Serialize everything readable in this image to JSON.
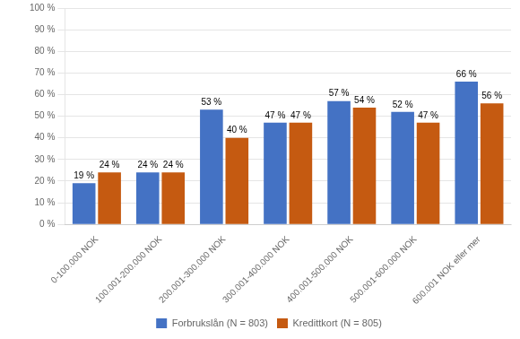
{
  "chart_data": {
    "type": "bar",
    "categories": [
      "0-100.000 NOK",
      "100.001-200.000 NOK",
      "200.001-300.000 NOK",
      "300.001-400.000 NOK",
      "400.001-500.000 NOK",
      "500.001-600.000 NOK",
      "600.001 NOK eller mer"
    ],
    "series": [
      {
        "name": "Forbrukslån (N = 803)",
        "color": "#4472C4",
        "values": [
          19,
          24,
          53,
          47,
          57,
          52,
          66
        ],
        "value_labels": [
          "19 %",
          "24 %",
          "53 %",
          "47 %",
          "57 %",
          "52 %",
          "66 %"
        ]
      },
      {
        "name": "Kredittkort (N = 805)",
        "color": "#C55A11",
        "values": [
          24,
          24,
          40,
          47,
          54,
          47,
          56
        ],
        "value_labels": [
          "24 %",
          "24 %",
          "40 %",
          "47 %",
          "54 %",
          "47 %",
          "56 %"
        ]
      }
    ],
    "ylim": [
      0,
      100
    ],
    "yticks": [
      {
        "value": 0,
        "label": "0 %"
      },
      {
        "value": 10,
        "label": "10 %"
      },
      {
        "value": 20,
        "label": "20 %"
      },
      {
        "value": 30,
        "label": "30 %"
      },
      {
        "value": 40,
        "label": "40 %"
      },
      {
        "value": 50,
        "label": "50 %"
      },
      {
        "value": 60,
        "label": "60 %"
      },
      {
        "value": 70,
        "label": "70 %"
      },
      {
        "value": 80,
        "label": "80 %"
      },
      {
        "value": 90,
        "label": "90 %"
      },
      {
        "value": 100,
        "label": "100 %"
      }
    ],
    "grid": true,
    "legend": "bottom",
    "data_labels": true
  }
}
